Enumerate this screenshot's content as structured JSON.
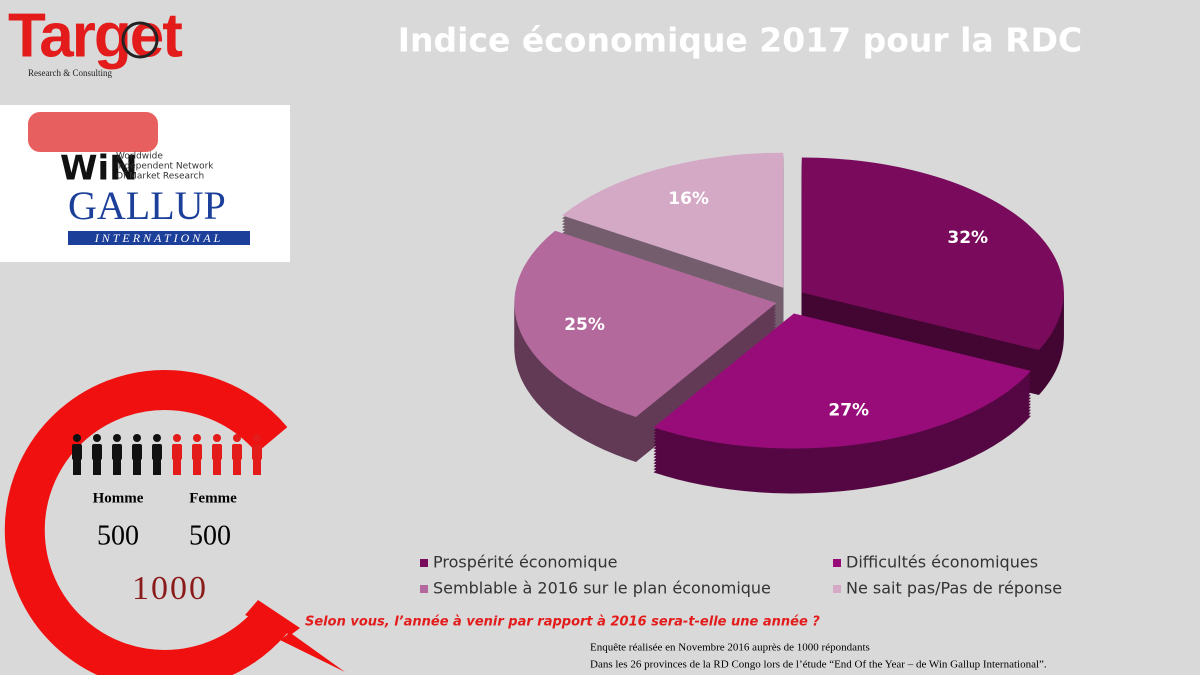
{
  "header": {
    "brand": "Target",
    "brand_sub": "Research & Consulting",
    "partner": {
      "win": "WiN",
      "line1": "Worldwide",
      "line2": "Independent Network",
      "line3": "Of Market Research",
      "gallup": "GALLUP",
      "international": "INTERNATIONAL"
    }
  },
  "sample": {
    "male_label": "Homme",
    "female_label": "Femme",
    "male": "500",
    "female": "500",
    "total": "1000"
  },
  "question": "Selon vous, l’année à venir par rapport à 2016 sera-t-elle une année ?",
  "notes": [
    "Enquête réalisée en Novembre 2016 auprès de 1000 répondants",
    "Dans  les 26 provinces de la  RD Congo lors de l’étude “End Of the Year – de Win Gallup International”."
  ],
  "chart_data": {
    "type": "pie",
    "title": "Indice économique 2017 pour la  RDC",
    "categories": [
      "Prospérité économique",
      "Difficultés économiques",
      "Semblable à 2016 sur le plan économique",
      "Ne sait pas/Pas de réponse"
    ],
    "values": [
      32,
      27,
      25,
      16
    ],
    "value_labels": [
      "32%",
      "27%",
      "25%",
      "16%"
    ],
    "colors": [
      "#7a0b5c",
      "#980c7a",
      "#b3699c",
      "#d3a9c6"
    ],
    "legend": "bottom"
  }
}
